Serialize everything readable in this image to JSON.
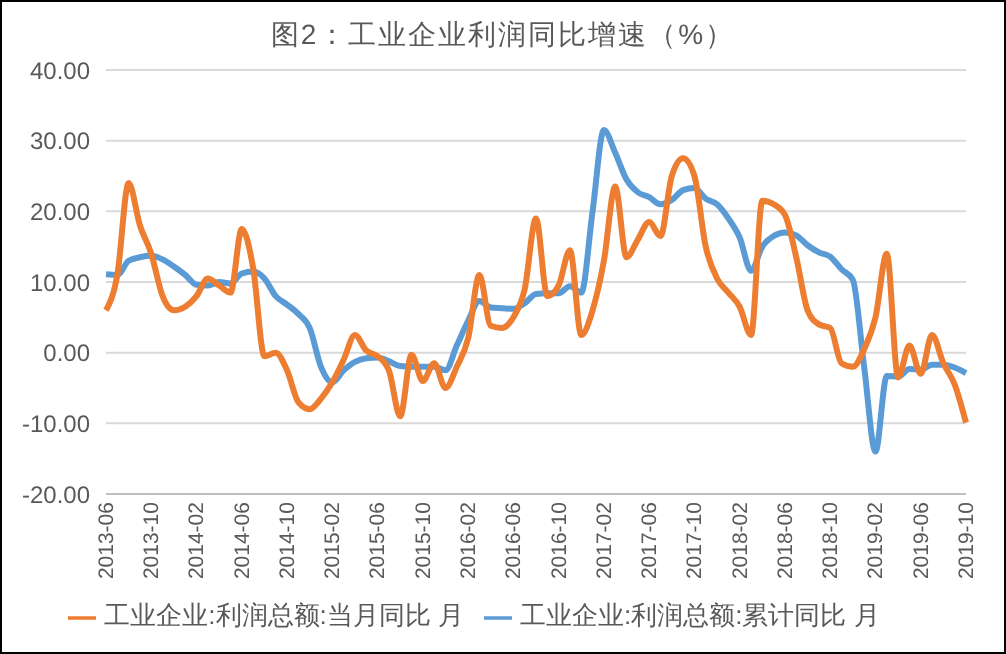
{
  "chart_data": {
    "type": "line",
    "title": "图2：工业企业利润同比增速（%）",
    "categories": [
      "2013-06",
      null,
      null,
      null,
      "2013-10",
      null,
      null,
      null,
      "2014-02",
      null,
      null,
      null,
      "2014-06",
      null,
      null,
      null,
      "2014-10",
      null,
      null,
      null,
      "2015-02",
      null,
      null,
      null,
      "2015-06",
      null,
      null,
      null,
      "2015-10",
      null,
      null,
      null,
      "2016-02",
      null,
      null,
      null,
      "2016-06",
      null,
      null,
      null,
      "2016-10",
      null,
      null,
      null,
      "2017-02",
      null,
      null,
      null,
      "2017-06",
      null,
      null,
      null,
      "2017-10",
      null,
      null,
      null,
      "2018-02",
      null,
      null,
      null,
      "2018-06",
      null,
      null,
      null,
      "2018-10",
      null,
      null,
      null,
      "2019-02",
      null,
      null,
      null,
      "2019-06",
      null,
      null,
      null,
      "2019-10"
    ],
    "series": [
      {
        "name": "工业企业:利润总额:累计同比 月",
        "color": "#5b9bd5",
        "values": [
          11.1,
          11,
          13,
          13.5,
          13.7,
          13.2,
          12.2,
          11,
          9.6,
          9.5,
          10,
          9.8,
          11.2,
          11.5,
          10.5,
          8,
          6.8,
          5.5,
          3.5,
          -2,
          -4.2,
          -2.5,
          -1.3,
          -0.8,
          -0.7,
          -1.2,
          -1.9,
          -2,
          -2,
          -2,
          -2.5,
          1,
          4.5,
          7.3,
          6.4,
          6.3,
          6.2,
          7,
          8.3,
          8.4,
          8.4,
          9.4,
          8.5,
          20,
          31.5,
          28.3,
          24.5,
          22.7,
          22,
          21,
          21.6,
          23,
          23.3,
          21.8,
          21,
          19,
          16.3,
          11.6,
          15,
          16.5,
          17,
          16.6,
          15.2,
          14.2,
          13.6,
          11.8,
          10.3,
          -2,
          -14,
          -3.3,
          -3.4,
          -2.3,
          -2.4,
          -1.7,
          -1.7,
          -2.1,
          -2.9
        ]
      },
      {
        "name": "工业企业:利润总额:当月同比 月",
        "color": "#ed7d31",
        "values": [
          6,
          11,
          24,
          18,
          14,
          8,
          6,
          6.5,
          8,
          10.5,
          9.5,
          8.5,
          17.5,
          12,
          -0.5,
          0,
          -2.5,
          -7,
          -8,
          -6.5,
          -4.2,
          -1,
          2.5,
          0.3,
          -0.5,
          -2.5,
          -9,
          -0.3,
          -4,
          -1.5,
          -5,
          -2,
          2,
          11,
          3.8,
          3.5,
          5,
          9,
          19,
          8,
          9.5,
          14.5,
          2.5,
          6,
          13,
          23.5,
          13.5,
          16,
          18.5,
          16.5,
          25,
          27.5,
          25,
          15,
          10.5,
          8.5,
          6.5,
          2.5,
          21.5,
          21,
          19.5,
          13.5,
          6,
          4,
          3.5,
          -1.5,
          -2,
          0.5,
          5,
          14,
          -3.5,
          1,
          -3,
          2.5,
          -1.5,
          -4.5,
          -9.9
        ]
      }
    ],
    "ylim": [
      -20,
      40
    ],
    "yticks": [
      {
        "value": -20,
        "label": "-20.00"
      },
      {
        "value": -10,
        "label": "-10.00"
      },
      {
        "value": 0,
        "label": "0.00"
      },
      {
        "value": 10,
        "label": "10.00"
      },
      {
        "value": 20,
        "label": "20.00"
      },
      {
        "value": 30,
        "label": "30.00"
      },
      {
        "value": 40,
        "label": "40.00"
      }
    ],
    "grid": "y",
    "legend": "bottom",
    "marker": "none",
    "line_style": "solid"
  }
}
